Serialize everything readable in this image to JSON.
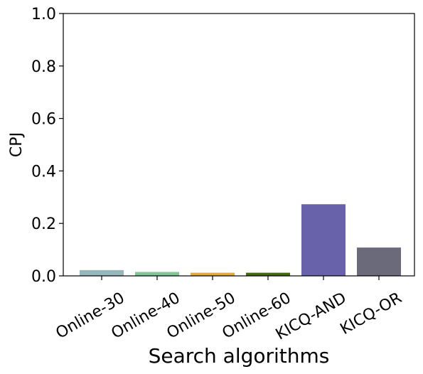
{
  "chart_data": {
    "type": "bar",
    "title": "",
    "xlabel": "Search algorithms",
    "ylabel": "CPJ",
    "categories": [
      "Online-30",
      "Online-40",
      "Online-50",
      "Online-60",
      "KICQ-AND",
      "KICQ-OR"
    ],
    "values": [
      0.022,
      0.015,
      0.012,
      0.012,
      0.273,
      0.108
    ],
    "colors": [
      "#95b6bb",
      "#7fc596",
      "#e0aa3e",
      "#436a10",
      "#6762aa",
      "#6b6a7a"
    ],
    "ylim": [
      0,
      1.0
    ],
    "yticks": [
      0.0,
      0.2,
      0.4,
      0.6,
      0.8,
      1.0
    ],
    "ytick_labels": [
      "0.0",
      "0.2",
      "0.4",
      "0.6",
      "0.8",
      "1.0"
    ],
    "grid": false,
    "legend": "none"
  }
}
